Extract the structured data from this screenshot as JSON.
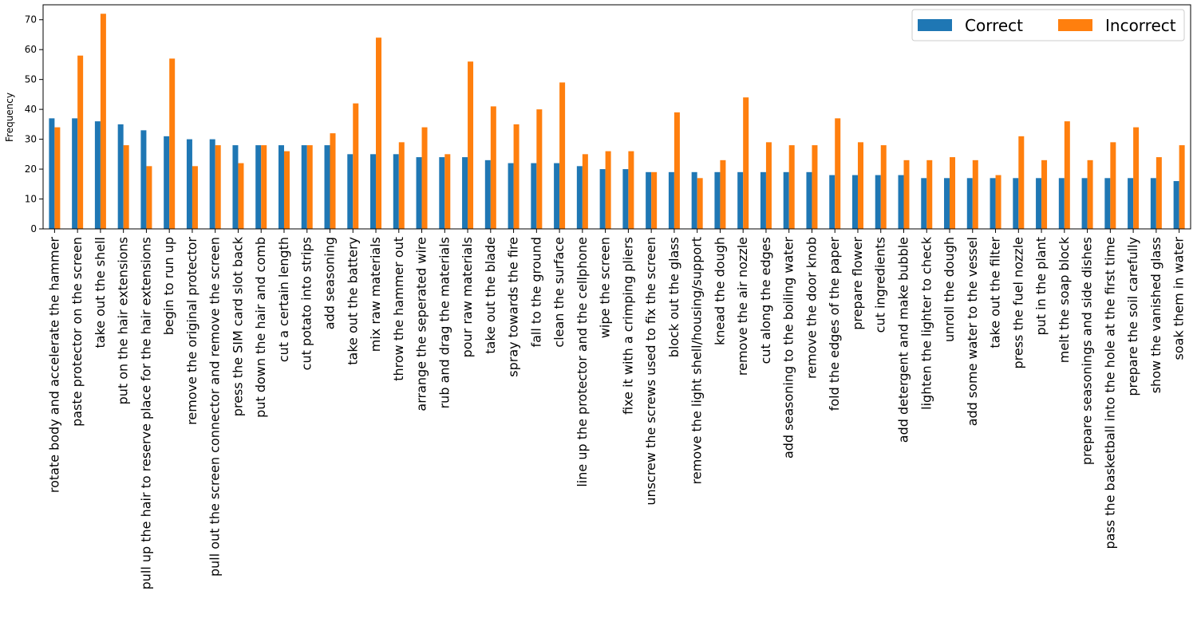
{
  "chart_data": {
    "type": "bar",
    "title": "",
    "xlabel": "",
    "ylabel": "Frequency",
    "ylim": [
      0,
      75
    ],
    "yticks": [
      0,
      10,
      20,
      30,
      40,
      50,
      60,
      70
    ],
    "grid": false,
    "legend": {
      "placement": "top-right",
      "columns": 2
    },
    "categories": [
      "rotate body and accelerate the hammer",
      "paste protector on the screen",
      "take out the shell",
      "put on the hair extensions",
      "pull up the hair to reserve place for the hair extensions",
      "begin to run up",
      "remove the original protector",
      "pull out the screen connector and remove the screen",
      "press the SIM card slot back",
      "put down the hair and comb",
      "cut a certain length",
      "cut potato into strips",
      "add seasoning",
      "take out the battery",
      "mix raw materials",
      "throw the hammer out",
      "arrange the seperated wire",
      "rub and drag the materials",
      "pour raw materials",
      "take out the blade",
      "spray towards the fire",
      "fall to the ground",
      "clean the surface",
      "line up the protector and the cellphone",
      "wipe the screen",
      "fixe it with a crimping pliers",
      "unscrew the screws used to fix the screen",
      "block out the glass",
      "remove the light shell/housing/support",
      "knead the dough",
      "remove the air nozzle",
      "cut along the edges",
      "add seasoning to the boiling water",
      "remove the door knob",
      "fold the edges of the paper",
      "prepare flower",
      "cut ingredients",
      "add detergent and make bubble",
      "lighten the lighter to check",
      "unroll the dough",
      "add some water to the vessel",
      "take out the filter",
      "press the fuel nozzle",
      "put in the plant",
      "melt the soap block",
      "prepare seasonings and side dishes",
      "pass the basketball into the hole at the first time",
      "prepare the soil carefully",
      "show the vanished glass",
      "soak them in water"
    ],
    "series": [
      {
        "name": "Correct",
        "color": "#1f77b4",
        "values": [
          37,
          37,
          36,
          35,
          33,
          31,
          30,
          30,
          28,
          28,
          28,
          28,
          28,
          25,
          25,
          25,
          24,
          24,
          24,
          23,
          22,
          22,
          22,
          21,
          20,
          20,
          19,
          19,
          19,
          19,
          19,
          19,
          19,
          19,
          18,
          18,
          18,
          18,
          17,
          17,
          17,
          17,
          17,
          17,
          17,
          17,
          17,
          17,
          17,
          16
        ]
      },
      {
        "name": "Incorrect",
        "color": "#ff7f0e",
        "values": [
          34,
          58,
          72,
          28,
          21,
          57,
          21,
          28,
          22,
          28,
          26,
          28,
          32,
          42,
          64,
          29,
          34,
          25,
          56,
          41,
          35,
          40,
          49,
          25,
          26,
          26,
          19,
          39,
          17,
          23,
          44,
          29,
          28,
          28,
          37,
          29,
          28,
          23,
          23,
          24,
          23,
          18,
          31,
          23,
          36,
          23,
          29,
          34,
          24,
          28
        ]
      }
    ]
  }
}
